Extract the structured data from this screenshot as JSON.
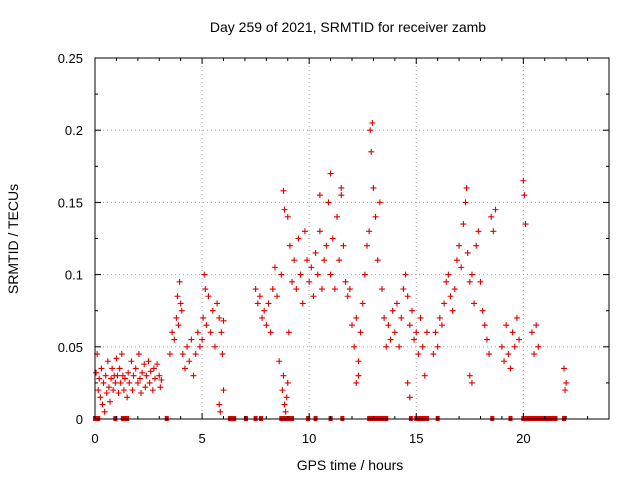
{
  "chart_data": {
    "type": "scatter",
    "title": "Day 259 of 2021, SRMTID for receiver zamb",
    "xlabel": "GPS time / hours",
    "ylabel": "SRMTID / TECUs",
    "xlim": [
      0,
      24
    ],
    "ylim": [
      0,
      0.25
    ],
    "x_ticks": [
      0,
      5,
      10,
      15,
      20
    ],
    "x_tick_labels": [
      "0",
      "5",
      "10",
      "15",
      "20"
    ],
    "y_ticks": [
      0,
      0.05,
      0.1,
      0.15,
      0.2,
      0.25
    ],
    "y_tick_labels": [
      "0",
      "0.05",
      "0.1",
      "0.15",
      "0.2",
      "0.25"
    ],
    "grid": true,
    "marker": "plus",
    "color": "#e00000",
    "series": [
      {
        "name": "SRMTID",
        "points": [
          [
            0.05,
            0.032
          ],
          [
            0.1,
            0.045
          ],
          [
            0.15,
            0.02
          ],
          [
            0.2,
            0.028
          ],
          [
            0.25,
            0.015
          ],
          [
            0.3,
            0.035
          ],
          [
            0.35,
            0.01
          ],
          [
            0.4,
            0.025
          ],
          [
            0.45,
            0.005
          ],
          [
            0.5,
            0.03
          ],
          [
            0.55,
            0.018
          ],
          [
            0.6,
            0.04
          ],
          [
            0.65,
            0.022
          ],
          [
            0.7,
            0.012
          ],
          [
            0.75,
            0.028
          ],
          [
            0.8,
            0.035
          ],
          [
            0.85,
            0.02
          ],
          [
            0.9,
            0.03
          ],
          [
            0.95,
            0.025
          ],
          [
            1.0,
            0.042
          ],
          [
            1.05,
            0.03
          ],
          [
            1.1,
            0.018
          ],
          [
            1.15,
            0.035
          ],
          [
            1.2,
            0.025
          ],
          [
            1.25,
            0.045
          ],
          [
            1.3,
            0.03
          ],
          [
            1.35,
            0.02
          ],
          [
            1.4,
            0.028
          ],
          [
            1.5,
            0.015
          ],
          [
            1.55,
            0.032
          ],
          [
            1.6,
            0.025
          ],
          [
            1.7,
            0.04
          ],
          [
            1.75,
            0.02
          ],
          [
            1.8,
            0.03
          ],
          [
            1.9,
            0.035
          ],
          [
            2.0,
            0.025
          ],
          [
            2.05,
            0.045
          ],
          [
            2.1,
            0.028
          ],
          [
            2.15,
            0.018
          ],
          [
            2.2,
            0.032
          ],
          [
            2.3,
            0.038
          ],
          [
            2.35,
            0.022
          ],
          [
            2.4,
            0.03
          ],
          [
            2.5,
            0.04
          ],
          [
            2.55,
            0.025
          ],
          [
            2.6,
            0.033
          ],
          [
            2.7,
            0.02
          ],
          [
            2.75,
            0.035
          ],
          [
            2.8,
            0.028
          ],
          [
            2.9,
            0.038
          ],
          [
            3.0,
            0.03
          ],
          [
            3.05,
            0.022
          ],
          [
            3.1,
            0.027
          ],
          [
            3.5,
            0.045
          ],
          [
            3.6,
            0.06
          ],
          [
            3.7,
            0.055
          ],
          [
            3.8,
            0.07
          ],
          [
            3.85,
            0.085
          ],
          [
            3.9,
            0.065
          ],
          [
            3.95,
            0.095
          ],
          [
            4.0,
            0.08
          ],
          [
            4.05,
            0.075
          ],
          [
            4.1,
            0.045
          ],
          [
            4.2,
            0.035
          ],
          [
            4.3,
            0.05
          ],
          [
            4.4,
            0.04
          ],
          [
            4.5,
            0.055
          ],
          [
            4.6,
            0.03
          ],
          [
            4.7,
            0.045
          ],
          [
            4.8,
            0.06
          ],
          [
            4.9,
            0.05
          ],
          [
            5.0,
            0.055
          ],
          [
            5.05,
            0.07
          ],
          [
            5.1,
            0.1
          ],
          [
            5.15,
            0.09
          ],
          [
            5.2,
            0.065
          ],
          [
            5.3,
            0.085
          ],
          [
            5.4,
            0.06
          ],
          [
            5.5,
            0.075
          ],
          [
            5.6,
            0.05
          ],
          [
            5.7,
            0.08
          ],
          [
            5.8,
            0.07
          ],
          [
            5.9,
            0.06
          ],
          [
            5.95,
            0.045
          ],
          [
            6.0,
            0.068
          ],
          [
            5.8,
            0.01
          ],
          [
            5.85,
            0.005
          ],
          [
            6.0,
            0.02
          ],
          [
            7.5,
            0.09
          ],
          [
            7.6,
            0.08
          ],
          [
            7.7,
            0.085
          ],
          [
            7.8,
            0.07
          ],
          [
            7.9,
            0.075
          ],
          [
            8.0,
            0.065
          ],
          [
            8.1,
            0.08
          ],
          [
            8.2,
            0.06
          ],
          [
            8.3,
            0.09
          ],
          [
            8.4,
            0.105
          ],
          [
            8.5,
            0.085
          ],
          [
            8.6,
            0.04
          ],
          [
            8.7,
            0.1
          ],
          [
            8.75,
            0.02
          ],
          [
            8.8,
            0.03
          ],
          [
            8.85,
            0.01
          ],
          [
            8.9,
            0.005
          ],
          [
            8.95,
            0.015
          ],
          [
            9.0,
            0.025
          ],
          [
            9.05,
            0.06
          ],
          [
            9.1,
            0.12
          ],
          [
            9.2,
            0.095
          ],
          [
            9.3,
            0.11
          ],
          [
            9.4,
            0.09
          ],
          [
            9.5,
            0.125
          ],
          [
            9.6,
            0.1
          ],
          [
            9.7,
            0.08
          ],
          [
            9.8,
            0.13
          ],
          [
            9.9,
            0.11
          ],
          [
            10.0,
            0.095
          ],
          [
            10.1,
            0.105
          ],
          [
            10.2,
            0.085
          ],
          [
            10.3,
            0.115
          ],
          [
            10.4,
            0.1
          ],
          [
            10.5,
            0.13
          ],
          [
            10.6,
            0.09
          ],
          [
            10.7,
            0.11
          ],
          [
            10.8,
            0.12
          ],
          [
            10.9,
            0.15
          ],
          [
            11.0,
            0.1
          ],
          [
            11.1,
            0.125
          ],
          [
            11.2,
            0.09
          ],
          [
            11.3,
            0.14
          ],
          [
            11.4,
            0.11
          ],
          [
            11.5,
            0.16
          ],
          [
            11.6,
            0.12
          ],
          [
            11.7,
            0.095
          ],
          [
            11.8,
            0.085
          ],
          [
            8.8,
            0.158
          ],
          [
            8.85,
            0.145
          ],
          [
            9.0,
            0.14
          ],
          [
            10.5,
            0.155
          ],
          [
            11.0,
            0.17
          ],
          [
            11.5,
            0.155
          ],
          [
            11.9,
            0.09
          ],
          [
            12.0,
            0.065
          ],
          [
            12.1,
            0.05
          ],
          [
            12.2,
            0.07
          ],
          [
            12.3,
            0.04
          ],
          [
            12.4,
            0.06
          ],
          [
            12.5,
            0.08
          ],
          [
            12.6,
            0.1
          ],
          [
            12.7,
            0.12
          ],
          [
            12.8,
            0.13
          ],
          [
            12.85,
            0.2
          ],
          [
            12.9,
            0.185
          ],
          [
            12.95,
            0.205
          ],
          [
            13.0,
            0.16
          ],
          [
            13.1,
            0.14
          ],
          [
            13.2,
            0.11
          ],
          [
            13.3,
            0.15
          ],
          [
            13.4,
            0.09
          ],
          [
            13.5,
            0.07
          ],
          [
            13.6,
            0.05
          ],
          [
            13.7,
            0.065
          ],
          [
            13.8,
            0.055
          ],
          [
            13.9,
            0.075
          ],
          [
            14.0,
            0.06
          ],
          [
            14.1,
            0.08
          ],
          [
            14.2,
            0.05
          ],
          [
            14.3,
            0.07
          ],
          [
            14.4,
            0.09
          ],
          [
            14.5,
            0.1
          ],
          [
            14.6,
            0.085
          ],
          [
            14.7,
            0.065
          ],
          [
            14.8,
            0.075
          ],
          [
            14.9,
            0.055
          ],
          [
            15.0,
            0.06
          ],
          [
            15.1,
            0.045
          ],
          [
            15.2,
            0.07
          ],
          [
            15.3,
            0.05
          ],
          [
            15.4,
            0.03
          ],
          [
            15.5,
            0.06
          ],
          [
            12.2,
            0.025
          ],
          [
            12.3,
            0.03
          ],
          [
            14.6,
            0.025
          ],
          [
            14.7,
            0.015
          ],
          [
            15.8,
            0.045
          ],
          [
            15.9,
            0.06
          ],
          [
            16.0,
            0.05
          ],
          [
            16.1,
            0.07
          ],
          [
            16.2,
            0.065
          ],
          [
            16.3,
            0.08
          ],
          [
            16.4,
            0.095
          ],
          [
            16.5,
            0.1
          ],
          [
            16.6,
            0.085
          ],
          [
            16.7,
            0.075
          ],
          [
            16.8,
            0.09
          ],
          [
            16.9,
            0.11
          ],
          [
            17.0,
            0.12
          ],
          [
            17.1,
            0.105
          ],
          [
            17.2,
            0.135
          ],
          [
            17.3,
            0.15
          ],
          [
            17.35,
            0.16
          ],
          [
            17.4,
            0.115
          ],
          [
            17.5,
            0.095
          ],
          [
            17.6,
            0.1
          ],
          [
            17.7,
            0.08
          ],
          [
            17.8,
            0.12
          ],
          [
            17.9,
            0.13
          ],
          [
            18.0,
            0.095
          ],
          [
            18.1,
            0.075
          ],
          [
            18.2,
            0.065
          ],
          [
            18.3,
            0.055
          ],
          [
            18.4,
            0.045
          ],
          [
            18.5,
            0.14
          ],
          [
            18.6,
            0.13
          ],
          [
            18.7,
            0.145
          ],
          [
            17.5,
            0.03
          ],
          [
            17.6,
            0.025
          ],
          [
            19.0,
            0.05
          ],
          [
            19.1,
            0.04
          ],
          [
            19.2,
            0.065
          ],
          [
            19.3,
            0.045
          ],
          [
            19.4,
            0.035
          ],
          [
            19.5,
            0.06
          ],
          [
            19.6,
            0.05
          ],
          [
            19.7,
            0.07
          ],
          [
            19.8,
            0.055
          ],
          [
            20.0,
            0.165
          ],
          [
            20.05,
            0.155
          ],
          [
            20.1,
            0.135
          ],
          [
            20.4,
            0.06
          ],
          [
            20.5,
            0.045
          ],
          [
            20.6,
            0.065
          ],
          [
            20.7,
            0.05
          ],
          [
            21.9,
            0.035
          ],
          [
            22.0,
            0.025
          ],
          [
            21.95,
            0.02
          ]
        ]
      }
    ],
    "gaps": [
      {
        "x": 0.95
      },
      {
        "x": 1.4
      },
      {
        "x": 3.35
      },
      {
        "x": 6.35
      },
      {
        "x": 7.05
      },
      {
        "x": 7.5
      },
      {
        "x": 7.75
      },
      {
        "x": 8.8
      },
      {
        "x": 9.95
      },
      {
        "x": 10.3
      },
      {
        "x": 11.0
      },
      {
        "x": 11.55
      },
      {
        "x": 12.9
      },
      {
        "x": 13.35
      },
      {
        "x": 14.75
      },
      {
        "x": 15.35
      },
      {
        "x": 16.0
      },
      {
        "x": 18.55
      },
      {
        "x": 19.4
      },
      {
        "x": 20.3
      },
      {
        "x": 20.8
      },
      {
        "x": 21.35
      },
      {
        "x": 21.9
      }
    ],
    "gap_ranges": [
      [
        0.0,
        0.15
      ],
      [
        1.3,
        1.5
      ],
      [
        6.3,
        6.5
      ],
      [
        8.7,
        9.2
      ],
      [
        12.8,
        13.6
      ],
      [
        15.0,
        15.5
      ],
      [
        20.0,
        21.5
      ]
    ]
  }
}
